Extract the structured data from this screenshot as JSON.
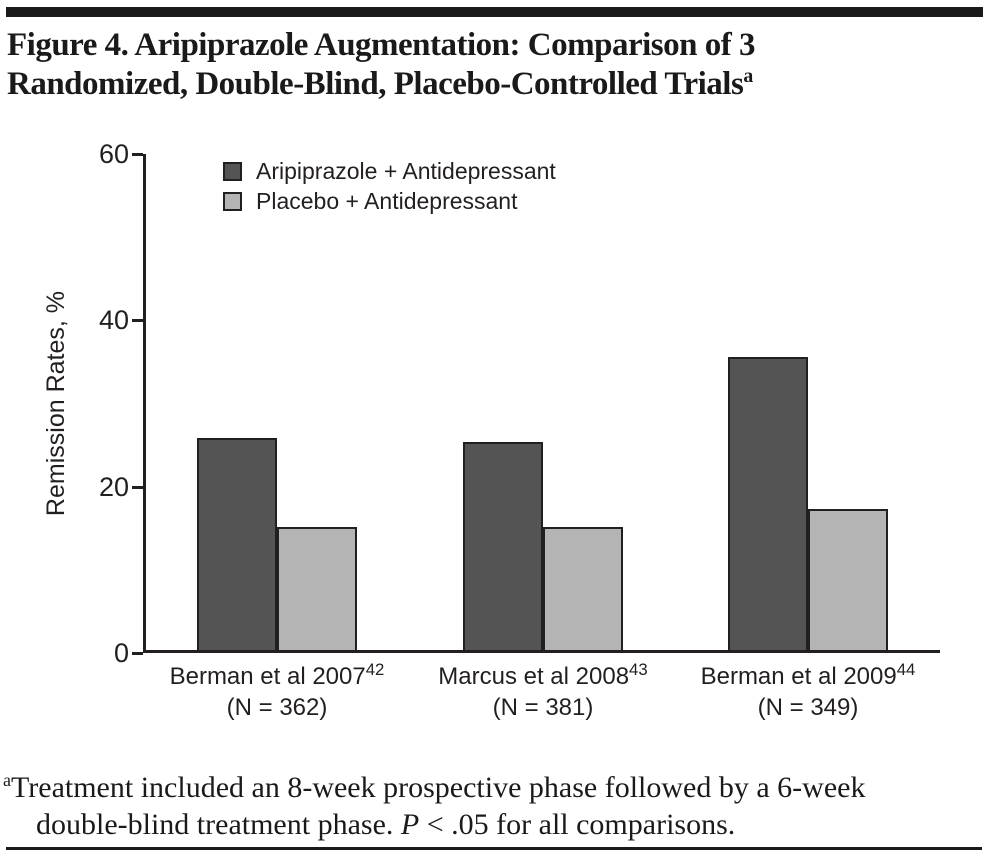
{
  "figure": {
    "title_line1": "Figure 4. Aripiprazole Augmentation: Comparison of 3",
    "title_line2": "Randomized, Double-Blind, Placebo-Controlled Trials",
    "title_superscript": "a"
  },
  "chart_data": {
    "type": "bar",
    "title": "Figure 4. Aripiprazole Augmentation: Comparison of 3 Randomized, Double-Blind, Placebo-Controlled Trials",
    "xlabel": "",
    "ylabel": "Remission Rates, %",
    "ylim": [
      0,
      60
    ],
    "yticks": [
      0,
      20,
      40,
      60
    ],
    "grid": false,
    "legend_position": "top-left-inside",
    "categories": [
      {
        "label": "Berman et al 2007",
        "ref": "42",
        "n_label": "(N = 362)"
      },
      {
        "label": "Marcus et al 2008",
        "ref": "43",
        "n_label": "(N = 381)"
      },
      {
        "label": "Berman et al 2009",
        "ref": "44",
        "n_label": "(N = 349)"
      }
    ],
    "series": [
      {
        "name": "Aripiprazole + Antidepressant",
        "color": "#545454",
        "values": [
          25.7,
          25.3,
          35.5
        ]
      },
      {
        "name": "Placebo + Antidepressant",
        "color": "#b4b4b4",
        "values": [
          15.0,
          15.0,
          17.2
        ]
      }
    ]
  },
  "footnote": {
    "superscript": "a",
    "line1": "Treatment included an 8-week prospective phase followed by a 6-week",
    "line2_prefix": "double-blind treatment phase. ",
    "p_symbol": "P",
    "line2_suffix": " < .05 for all comparisons."
  },
  "colors": {
    "ink": "#231f20",
    "rule": "#1a1a1a",
    "background": "#ffffff"
  }
}
